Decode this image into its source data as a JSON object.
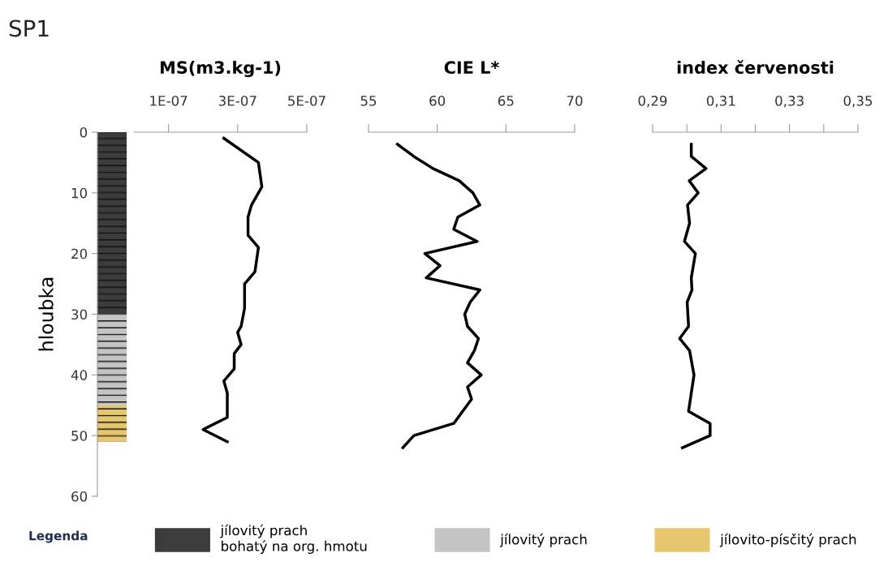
{
  "chart_data": [
    {
      "type": "bar",
      "title": "SP1",
      "ylabel": "hloubka",
      "stacked": true,
      "categories": [
        null
      ],
      "ylim": [
        60,
        0
      ],
      "yticks": [
        0,
        10,
        20,
        30,
        40,
        50,
        60
      ],
      "tick_labels": "y",
      "legend": "bottom",
      "legend_title": "Legenda",
      "series": [
        {
          "name": "jílovitý prach\nbohatý na org. hmotu",
          "color": "#3c3c3c",
          "values": [
            30
          ]
        },
        {
          "name": "jílovitý prach",
          "color": "#c4c4c4",
          "values": [
            15
          ]
        },
        {
          "name": "jílovito-písčitý prach",
          "color": "#e6c66e",
          "values": [
            6
          ]
        }
      ]
    },
    {
      "type": "line",
      "title": "MS(m3.kg-1)",
      "xlim": [
        0,
        5e-07
      ],
      "xticks": [
        {
          "value": 1e-07,
          "label": "1E-07"
        },
        {
          "value": 3e-07,
          "label": "3E-07"
        },
        {
          "value": 5e-07,
          "label": "5E-07"
        }
      ],
      "ylim": [
        60,
        0
      ],
      "tick_labels": "x",
      "series": [
        {
          "color": "#000000",
          "x": [
            2.6e-07,
            3.6e-07,
            3.7e-07,
            3.4e-07,
            3.3e-07,
            3.3e-07,
            3.6e-07,
            3.5e-07,
            3.2e-07,
            3.2e-07,
            3.1e-07,
            3e-07,
            3.1e-07,
            2.9e-07,
            2.9e-07,
            2.6e-07,
            2.7e-07,
            2.7e-07,
            2e-07,
            2.7e-07
          ],
          "values": [
            1,
            5,
            9,
            12,
            14,
            17,
            19,
            23,
            25,
            29,
            32,
            33,
            35,
            36.5,
            39,
            41,
            43,
            47,
            49,
            51
          ]
        }
      ]
    },
    {
      "type": "line",
      "title": "CIE L*",
      "xlim": [
        55,
        70
      ],
      "xticks": [
        55,
        60,
        65,
        70
      ],
      "ylim": [
        60,
        0
      ],
      "tick_labels": "x",
      "series": [
        {
          "color": "#000000",
          "x": [
            57.1,
            58.3,
            59.7,
            61.6,
            62.6,
            63.1,
            61.5,
            61.2,
            62.9,
            59.1,
            60.2,
            59.2,
            63.1,
            62.4,
            62.0,
            62.2,
            63.0,
            62.7,
            62.2,
            63.2,
            62.2,
            62.5,
            61.2,
            58.3,
            57.5
          ],
          "values": [
            2,
            4,
            6,
            8,
            10,
            12,
            14,
            16,
            18,
            20,
            22,
            24,
            26,
            28,
            30,
            32,
            34,
            36,
            38,
            40,
            42,
            44,
            48,
            50,
            52
          ]
        }
      ]
    },
    {
      "type": "line",
      "title": "index červenosti",
      "xlim": [
        0.29,
        0.35
      ],
      "xticks": [
        {
          "value": 0.29,
          "label": "0,29"
        },
        {
          "value": 0.3,
          "label": null
        },
        {
          "value": 0.31,
          "label": "0,31"
        },
        {
          "value": 0.32,
          "label": null
        },
        {
          "value": 0.33,
          "label": "0,33"
        },
        {
          "value": 0.34,
          "label": null
        },
        {
          "value": 0.35,
          "label": "0,35"
        }
      ],
      "ylim": [
        60,
        0
      ],
      "tick_labels": "x",
      "series": [
        {
          "color": "#000000",
          "x": [
            0.3013,
            0.3013,
            0.3056,
            0.3007,
            0.3033,
            0.3002,
            0.3008,
            0.2993,
            0.3025,
            0.3013,
            0.3015,
            0.3001,
            0.3005,
            0.2979,
            0.3008,
            0.3021,
            0.3005,
            0.3068,
            0.3068,
            0.2987
          ],
          "values": [
            2,
            4,
            6,
            8,
            10,
            12,
            15,
            18,
            20,
            24,
            26,
            28,
            32,
            34,
            36,
            40,
            46,
            48,
            50,
            52
          ]
        }
      ]
    }
  ]
}
